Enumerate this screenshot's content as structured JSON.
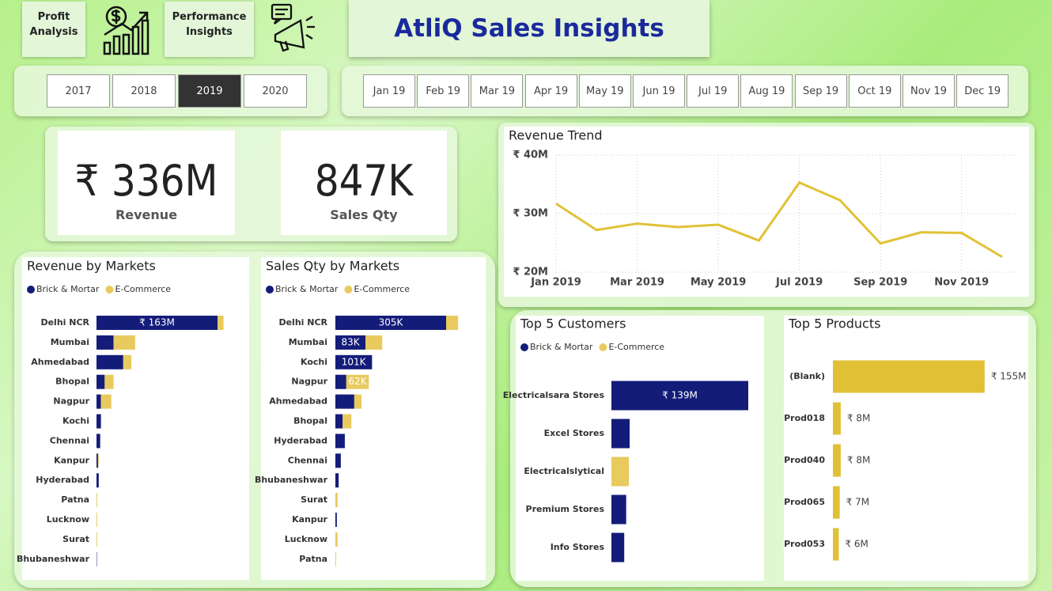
{
  "header": {
    "buttons": [
      "Profit Analysis",
      "Performance Insights"
    ],
    "title": "AtliQ Sales Insights"
  },
  "year_slicer": {
    "options": [
      "2017",
      "2018",
      "2019",
      "2020"
    ],
    "selected": "2019"
  },
  "month_slicer": {
    "options": [
      "Jan 19",
      "Feb 19",
      "Mar 19",
      "Apr 19",
      "May 19",
      "Jun 19",
      "Jul 19",
      "Aug 19",
      "Sep 19",
      "Oct 19",
      "Nov 19",
      "Dec 19"
    ]
  },
  "kpis": [
    {
      "value": "₹ 336M",
      "label": "Revenue"
    },
    {
      "value": "847K",
      "label": "Sales Qty"
    }
  ],
  "chart_data": [
    {
      "type": "line",
      "title": "Revenue Trend",
      "categories": [
        "Jan 2019",
        null,
        "Mar 2019",
        null,
        "May 2019",
        null,
        "Jul 2019",
        null,
        "Sep 2019",
        null,
        "Nov 2019",
        null
      ],
      "values": [
        31.7,
        27.2,
        28.3,
        27.7,
        28.1,
        25.4,
        35.3,
        32.3,
        24.9,
        26.8,
        26.7,
        22.6
      ],
      "color": "#e1c236",
      "ylim": [
        20,
        40
      ],
      "yticks": [
        {
          "value": 20,
          "label": "₹ 20M"
        },
        {
          "value": 30,
          "label": "₹ 30M"
        },
        {
          "value": 40,
          "label": "₹ 40M"
        }
      ],
      "grid": true
    },
    {
      "type": "hbar",
      "title": "Revenue by Markets",
      "categories": [
        "Delhi NCR",
        "Mumbai",
        "Ahmedabad",
        "Bhopal",
        "Nagpur",
        "Kochi",
        "Chennai",
        "Kanpur",
        "Hyderabad",
        "Patna",
        "Lucknow",
        "Surat",
        "Bhubaneshwar"
      ],
      "series": [
        {
          "name": "Brick & Mortar",
          "color": "#141c7a",
          "values": [
            163,
            23,
            36,
            11,
            6,
            6,
            5,
            2,
            3,
            0,
            0,
            0,
            0.5
          ],
          "value_labels": [
            "₹ 163M",
            null,
            null,
            null,
            null,
            null,
            null,
            null,
            null,
            null,
            null,
            null,
            null
          ]
        },
        {
          "name": "E-Commerce",
          "color": "#e8ca5e",
          "values": [
            8,
            29,
            11,
            12,
            14,
            0,
            0,
            1,
            0,
            1,
            1,
            1,
            0
          ]
        }
      ],
      "xlim": [
        0,
        180
      ]
    },
    {
      "type": "hbar",
      "title": "Sales Qty by Markets",
      "categories": [
        "Delhi NCR",
        "Mumbai",
        "Kochi",
        "Nagpur",
        "Ahmedabad",
        "Bhopal",
        "Hyderabad",
        "Chennai",
        "Bhubaneshwar",
        "Surat",
        "Kanpur",
        "Lucknow",
        "Patna"
      ],
      "series": [
        {
          "name": "Brick & Mortar",
          "color": "#141c7a",
          "values": [
            305,
            83,
            101,
            30,
            52,
            20,
            26,
            15,
            9,
            0,
            4,
            0,
            0
          ],
          "value_labels": [
            "305K",
            "83K",
            "101K",
            null,
            null,
            null,
            null,
            null,
            null,
            null,
            null,
            null,
            null
          ]
        },
        {
          "name": "E-Commerce",
          "color": "#e8ca5e",
          "values": [
            33,
            46,
            0,
            62,
            20,
            24,
            0,
            0,
            0,
            6,
            0,
            6,
            2
          ],
          "value_labels": [
            null,
            null,
            null,
            "62K",
            null,
            null,
            null,
            null,
            null,
            null,
            null,
            null,
            null
          ]
        }
      ],
      "xlim": [
        0,
        330
      ]
    },
    {
      "type": "hbar",
      "title": "Top 5 Customers",
      "categories": [
        "Electricalsara Stores",
        "Excel Stores",
        "Electricalslytical",
        "Premium Stores",
        "Info Stores"
      ],
      "series": [
        {
          "name": "Brick & Mortar",
          "color": "#141c7a",
          "values": [
            139,
            18.5,
            0,
            15,
            13
          ],
          "value_labels": [
            "₹ 139M",
            null,
            null,
            null,
            null
          ]
        },
        {
          "name": "E-Commerce",
          "color": "#e8ca5e",
          "values": [
            0,
            0,
            17.7,
            0,
            0
          ]
        }
      ],
      "xlim": [
        0,
        150
      ]
    },
    {
      "type": "hbar",
      "title": "Top 5 Products",
      "categories": [
        "(Blank)",
        "Prod018",
        "Prod040",
        "Prod065",
        "Prod053"
      ],
      "values": [
        155,
        8,
        8,
        7,
        6
      ],
      "value_labels": [
        "₹ 155M",
        "₹ 8M",
        "₹ 8M",
        "₹ 7M",
        "₹ 6M"
      ],
      "color": "#e1c036",
      "xlim": [
        0,
        160
      ]
    }
  ]
}
